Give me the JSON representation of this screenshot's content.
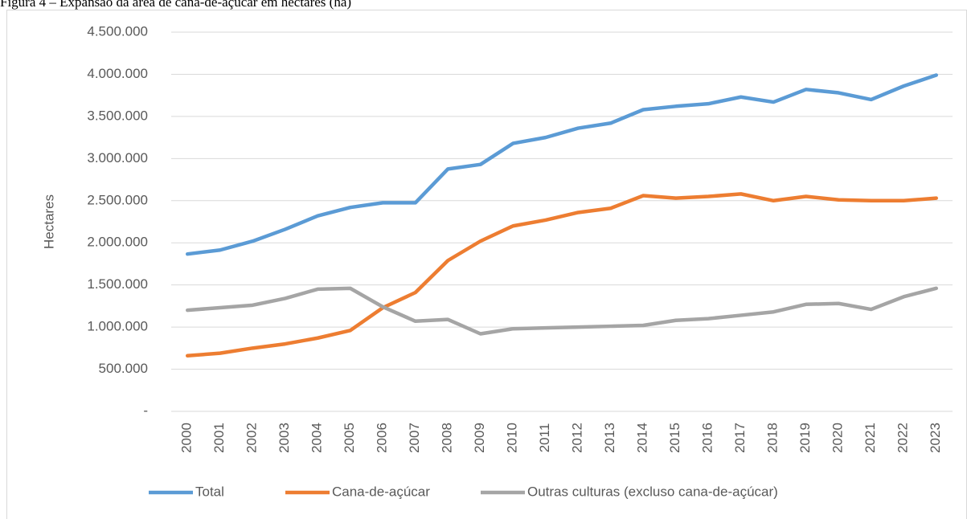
{
  "chart_data": {
    "type": "line",
    "title": "Figura 4 – Expansão da área de cana-de-açúcar em hectares (ha)",
    "y_label": "Hectares",
    "categories": [
      "2000",
      "2001",
      "2002",
      "2003",
      "2004",
      "2005",
      "2006",
      "2007",
      "2008",
      "2009",
      "2010",
      "2011",
      "2012",
      "2013",
      "2014",
      "2015",
      "2016",
      "2017",
      "2018",
      "2019",
      "2020",
      "2021",
      "2022",
      "2023"
    ],
    "series": [
      {
        "name": "Total",
        "color": "#5b9bd5",
        "values": [
          1867000,
          1914000,
          2019000,
          2160000,
          2320000,
          2420000,
          2475000,
          2475000,
          2876000,
          2930000,
          3180000,
          3250000,
          3360000,
          3420000,
          3580000,
          3620000,
          3650000,
          3730000,
          3670000,
          3820000,
          3780000,
          3700000,
          3860000,
          3990000
        ]
      },
      {
        "name": "Cana-de-açúcar",
        "color": "#ed7d31",
        "values": [
          660000,
          690000,
          750000,
          800000,
          870000,
          960000,
          1230000,
          1410000,
          1790000,
          2020000,
          2200000,
          2270000,
          2360000,
          2410000,
          2560000,
          2530000,
          2550000,
          2580000,
          2500000,
          2550000,
          2510000,
          2500000,
          2500000,
          2530000
        ]
      },
      {
        "name": "Outras culturas (excluso cana-de-açúcar)",
        "color": "#a5a5a5",
        "values": [
          1200000,
          1230000,
          1260000,
          1340000,
          1450000,
          1460000,
          1240000,
          1070000,
          1090000,
          920000,
          980000,
          990000,
          1000000,
          1010000,
          1020000,
          1080000,
          1100000,
          1140000,
          1180000,
          1270000,
          1280000,
          1210000,
          1360000,
          1460000
        ]
      }
    ],
    "ylim": [
      0,
      4500000
    ],
    "yticks": [
      {
        "value": 0,
        "label": "-"
      },
      {
        "value": 500000,
        "label": "500.000"
      },
      {
        "value": 1000000,
        "label": "1.000.000"
      },
      {
        "value": 1500000,
        "label": "1.500.000"
      },
      {
        "value": 2000000,
        "label": "2.000.000"
      },
      {
        "value": 2500000,
        "label": "2.500.000"
      },
      {
        "value": 3000000,
        "label": "3.000.000"
      },
      {
        "value": 3500000,
        "label": "3.500.000"
      },
      {
        "value": 4000000,
        "label": "4.000.000"
      },
      {
        "value": 4500000,
        "label": "4.500.000"
      }
    ],
    "grid": true,
    "legend": "bottom"
  }
}
